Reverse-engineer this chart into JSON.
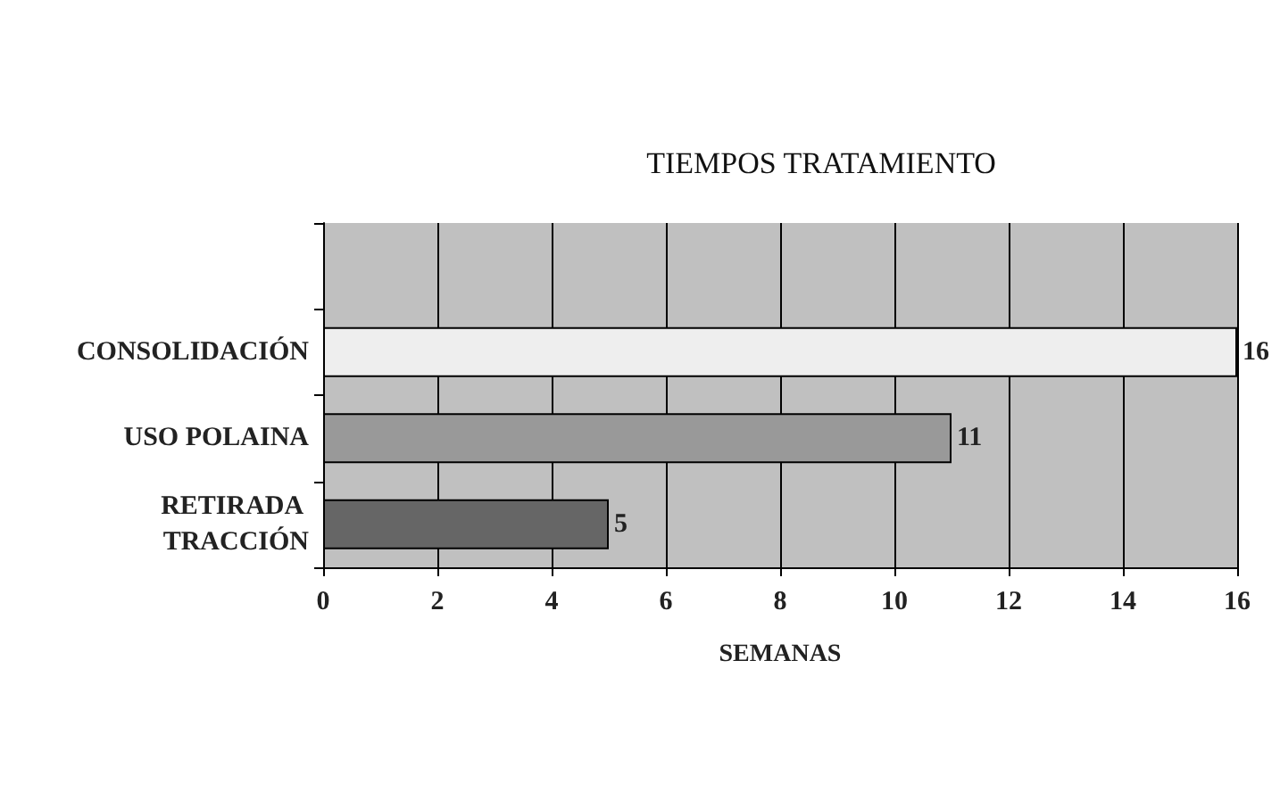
{
  "chart_data": {
    "type": "bar",
    "orientation": "horizontal",
    "title": "TIEMPOS TRATAMIENTO",
    "xlabel": "SEMANAS",
    "categories": [
      null,
      "CONSOLIDACIÓN",
      "USO POLAINA",
      "RETIRADA TRACCIÓN"
    ],
    "values": [
      null,
      16,
      11,
      5
    ],
    "colors": [
      "#eeeeee",
      "#eeeeee",
      "#999999",
      "#666666"
    ],
    "xlim": [
      0,
      16
    ],
    "xticks": [
      0,
      2,
      4,
      6,
      8,
      10,
      12,
      14,
      16
    ],
    "grid": "x",
    "data_labels": true
  }
}
